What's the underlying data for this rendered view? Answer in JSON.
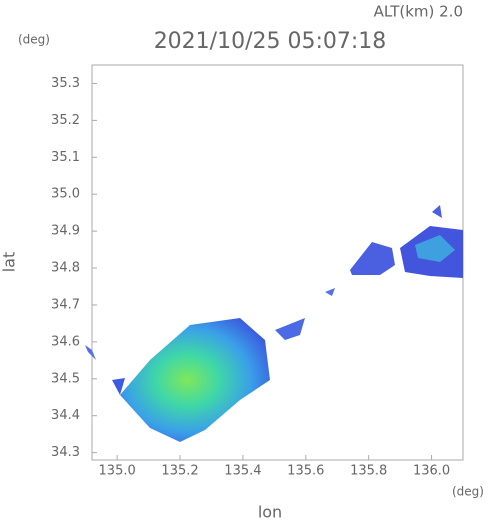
{
  "chart_data": {
    "type": "radar-map",
    "title": "2021/10/25 05:07:18",
    "subtitle": "ALT(km) 2.0",
    "y_unit": "(deg)",
    "x_unit": "(deg)",
    "xlabel": "lon",
    "ylabel": "lat",
    "xlim": [
      134.92,
      136.1
    ],
    "xticks": [
      {
        "value": 135.0,
        "label": "135.0"
      },
      135.2,
      135.4,
      135.6,
      135.8,
      {
        "value": 136.0,
        "label": "136.0"
      }
    ],
    "ylim": [
      34.28,
      35.35
    ],
    "yticks": [
      34.3,
      34.4,
      34.5,
      34.6,
      34.7,
      34.8,
      34.9,
      {
        "value": 35.0,
        "label": "35.0"
      },
      35.1,
      35.2,
      35.3
    ],
    "grid": false
  }
}
